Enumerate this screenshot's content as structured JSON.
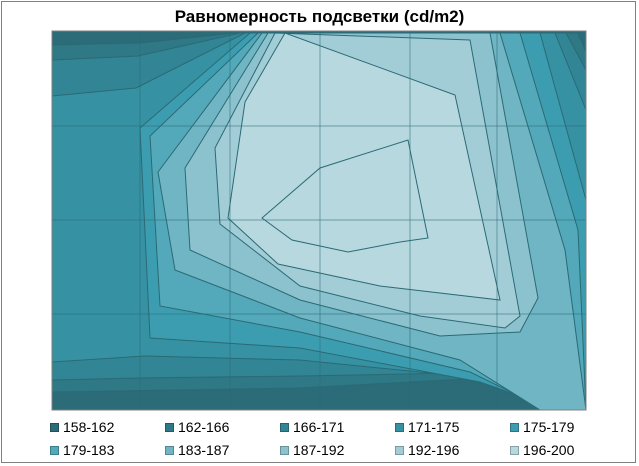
{
  "chart_data": {
    "type": "contour",
    "title": "Равномерность подсветки (cd/m2)",
    "xlabel": "",
    "ylabel": "",
    "grid": true,
    "legend_position": "bottom",
    "levels": [
      {
        "label": "158-162",
        "color": "#2c6b78"
      },
      {
        "label": "162-166",
        "color": "#2f7886"
      },
      {
        "label": "166-171",
        "color": "#328594"
      },
      {
        "label": "171-175",
        "color": "#3692a3"
      },
      {
        "label": "175-179",
        "color": "#3c9db0"
      },
      {
        "label": "179-183",
        "color": "#53a8b9"
      },
      {
        "label": "183-187",
        "color": "#70b5c3"
      },
      {
        "label": "187-192",
        "color": "#8cc2cd"
      },
      {
        "label": "192-196",
        "color": "#a3cdd6"
      },
      {
        "label": "196-200",
        "color": "#b7d8df"
      }
    ]
  }
}
